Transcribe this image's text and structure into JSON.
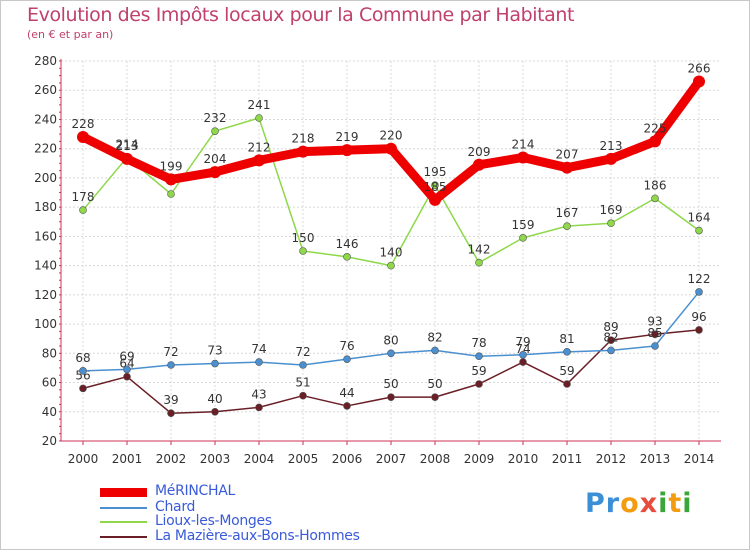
{
  "header": {
    "title": "Evolution des Impôts locaux pour la Commune par Habitant",
    "subtitle": "(en € et par an)"
  },
  "logo": {
    "letters": [
      "P",
      "r",
      "o",
      "x",
      "i",
      "t",
      "i"
    ],
    "colors": [
      "#3a8fd6",
      "#3a8fd6",
      "#f39c12",
      "#e84c3d",
      "#3aa63a",
      "#f39c12",
      "#3aa63a"
    ]
  },
  "chart_data": {
    "type": "line",
    "title": "Evolution des Impôts locaux pour la Commune par Habitant",
    "subtitle": "(en € et par an)",
    "xlabel": "",
    "ylabel": "",
    "ylim": [
      20,
      280
    ],
    "yticks": [
      20,
      40,
      60,
      80,
      100,
      120,
      140,
      160,
      180,
      200,
      220,
      240,
      260,
      280
    ],
    "grid": true,
    "legend": "bottom-left",
    "x": [
      "2000",
      "2001",
      "2002",
      "2003",
      "2004",
      "2005",
      "2006",
      "2007",
      "2008",
      "2009",
      "2010",
      "2011",
      "2012",
      "2013",
      "2014"
    ],
    "series": [
      {
        "name": "Lioux-les-Monges",
        "color": "#8ed84a",
        "values": [
          178,
          214,
          189,
          232,
          241,
          150,
          146,
          140,
          195,
          142,
          159,
          167,
          169,
          186,
          164
        ],
        "labels": [
          "178",
          "214",
          "",
          "232",
          "241",
          "150",
          "146",
          "140",
          "195",
          "142",
          "159",
          "167",
          "169",
          "186",
          "164"
        ]
      },
      {
        "name": "La Mazière-aux-Bons-Hommes",
        "color": "#6a1f26",
        "values": [
          56,
          64,
          39,
          40,
          43,
          51,
          44,
          50,
          50,
          59,
          74,
          59,
          89,
          93,
          96
        ],
        "labels": [
          "56",
          "64",
          "39",
          "40",
          "43",
          "51",
          "44",
          "50",
          "50",
          "59",
          "74",
          "59",
          "89",
          "93",
          "96"
        ]
      },
      {
        "name": "Chard",
        "color": "#4a90d0",
        "values": [
          68,
          69,
          72,
          73,
          74,
          72,
          76,
          80,
          82,
          78,
          79,
          81,
          82,
          85,
          122
        ],
        "labels": [
          "68",
          "69",
          "72",
          "73",
          "74",
          "72",
          "76",
          "80",
          "82",
          "78",
          "79",
          "81",
          "82",
          "85",
          "122"
        ]
      },
      {
        "name": "MéRINCHAL",
        "color": "#ee0000",
        "values": [
          228,
          213,
          199,
          204,
          212,
          218,
          219,
          220,
          185,
          209,
          214,
          207,
          213,
          225,
          266
        ],
        "labels": [
          "228",
          "213",
          "199",
          "204",
          "212",
          "218",
          "219",
          "220",
          "185",
          "209",
          "214",
          "207",
          "213",
          "225",
          "266"
        ]
      }
    ],
    "legend_order": [
      "MéRINCHAL",
      "Chard",
      "Lioux-les-Monges",
      "La Mazière-aux-Bons-Hommes"
    ]
  }
}
